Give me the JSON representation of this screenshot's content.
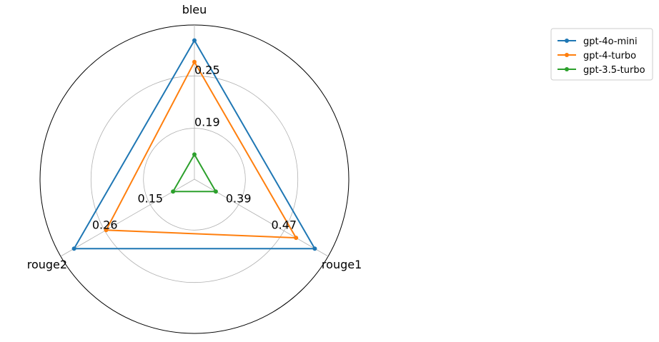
{
  "chart_data": {
    "type": "radar",
    "axes": [
      "bleu",
      "rouge1",
      "rouge2"
    ],
    "ring_labels": {
      "bleu": [
        "0.19",
        "0.25"
      ],
      "rouge1": [
        "0.39",
        "0.47"
      ],
      "rouge2": [
        "0.15",
        "0.26"
      ]
    },
    "rings": [
      0.33,
      0.67,
      1.0
    ],
    "series": [
      {
        "name": "gpt-4o-mini",
        "color": "#1f77b4",
        "values": [
          0.9,
          0.9,
          0.9
        ]
      },
      {
        "name": "gpt-4-turbo",
        "color": "#ff7f0e",
        "values": [
          0.76,
          0.76,
          0.66
        ]
      },
      {
        "name": "gpt-3.5-turbo",
        "color": "#2ca02c",
        "values": [
          0.16,
          0.16,
          0.16
        ]
      }
    ],
    "legend_position": "upper-right"
  }
}
